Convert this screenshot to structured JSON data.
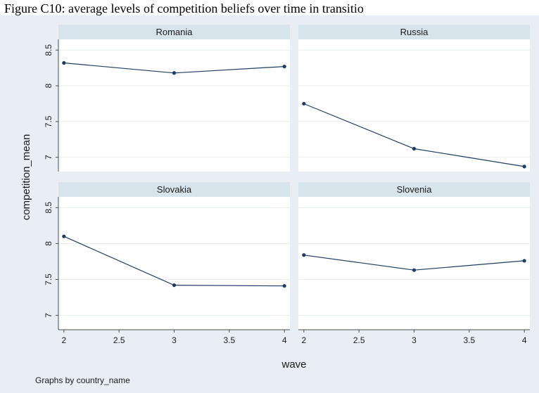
{
  "caption": "Figure C10: average levels of competition beliefs over time in transitio",
  "note": "Graphs by country_name",
  "chart_data": {
    "type": "line",
    "xlabel": "wave",
    "ylabel": "competition_mean",
    "xlim": [
      1.95,
      4.05
    ],
    "ylim": [
      6.8,
      8.65
    ],
    "xticks": [
      2,
      2.5,
      3,
      3.5,
      4
    ],
    "xtick_labels": [
      "2",
      "2.5",
      "3",
      "3.5",
      "4"
    ],
    "yticks": [
      7,
      7.5,
      8,
      8.5
    ],
    "ytick_labels": [
      "7",
      "7.5",
      "8",
      "8.5"
    ],
    "grid": true,
    "line_color": "#1f3d63",
    "strip_color": "#d7e4ec",
    "background_color": "#e8eef3",
    "panels": [
      {
        "name": "Romania",
        "x": [
          2,
          3,
          4
        ],
        "y": [
          8.32,
          8.18,
          8.27
        ]
      },
      {
        "name": "Russia",
        "x": [
          2,
          3,
          4
        ],
        "y": [
          7.75,
          7.12,
          6.87
        ]
      },
      {
        "name": "Slovakia",
        "x": [
          2,
          3,
          4
        ],
        "y": [
          8.1,
          7.42,
          7.41
        ]
      },
      {
        "name": "Slovenia",
        "x": [
          2,
          3,
          4
        ],
        "y": [
          7.84,
          7.63,
          7.76
        ]
      }
    ]
  }
}
